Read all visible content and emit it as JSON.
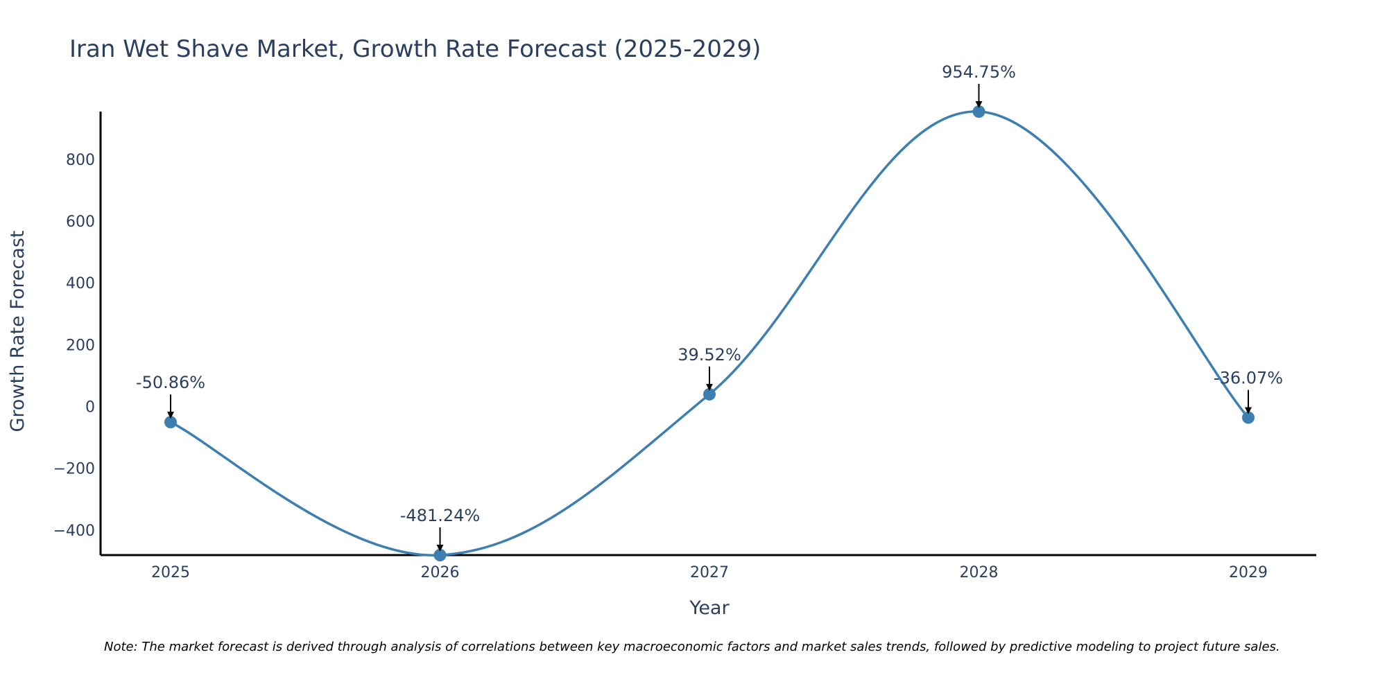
{
  "chart_data": {
    "type": "line",
    "title": "Iran Wet Shave Market, Growth Rate Forecast (2025-2029)",
    "xlabel": "Year",
    "ylabel": "Growth Rate Forecast",
    "categories": [
      "2025",
      "2026",
      "2027",
      "2028",
      "2029"
    ],
    "values": [
      -50.86,
      -481.24,
      39.52,
      954.75,
      -36.07
    ],
    "data_labels": [
      "-50.86%",
      "-481.24%",
      "39.52%",
      "954.75%",
      "-36.07%"
    ],
    "ylim": [
      -481.24,
      954.75
    ],
    "yticks": [
      -400,
      -200,
      0,
      200,
      400,
      600,
      800
    ],
    "ytick_labels": [
      "−400",
      "−200",
      "0",
      "200",
      "400",
      "600",
      "800"
    ],
    "grid": false,
    "legend": "none",
    "colors": {
      "line": "#3d7fb0",
      "marker": "#3d7fb0",
      "axis": "#000000",
      "text": "#2a3f5f",
      "arrow": "#000000"
    }
  },
  "note": "Note: The market forecast is derived through analysis of correlations between key macroeconomic factors and market sales trends, followed by predictive modeling to project future sales."
}
